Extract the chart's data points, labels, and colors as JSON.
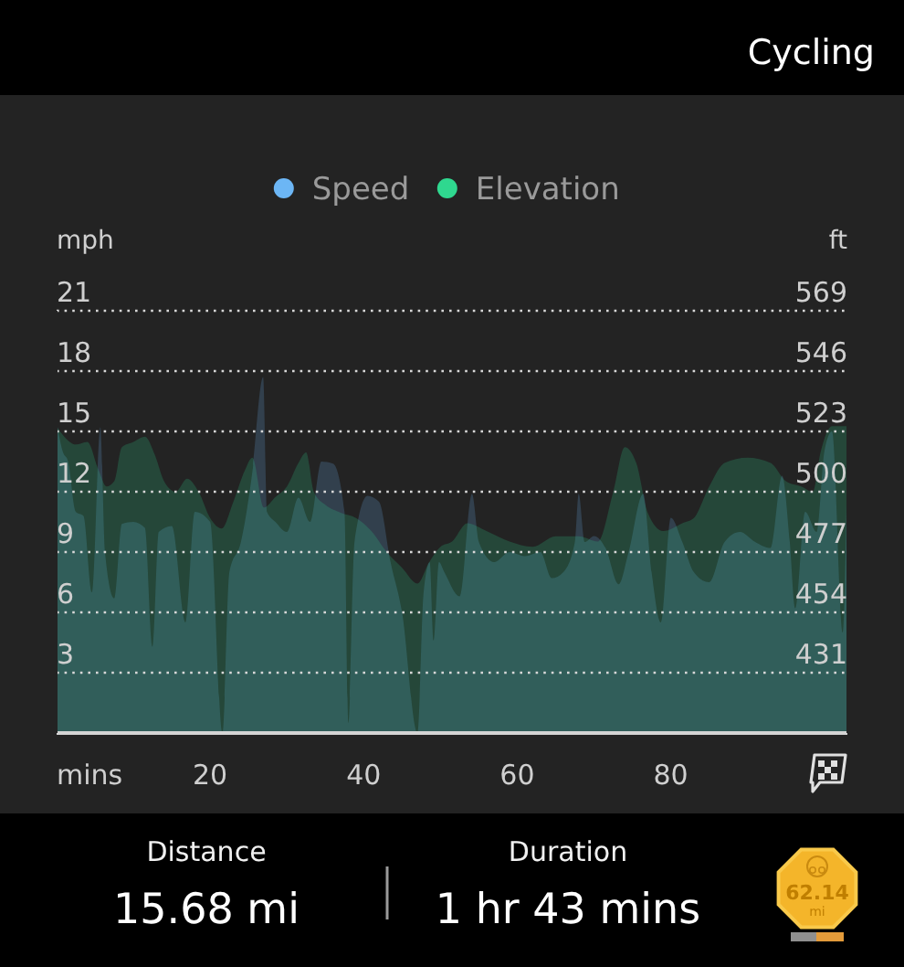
{
  "chart_data": {
    "type": "area",
    "title": "Cycling",
    "xlabel": "mins",
    "ylabel": "mph",
    "y2label": "ft",
    "xlim": [
      0,
      103
    ],
    "xticks": [
      20,
      40,
      60,
      80
    ],
    "ylim": [
      0,
      21
    ],
    "yticks": [
      3,
      6,
      9,
      12,
      15,
      18,
      21
    ],
    "y2lim": [
      408,
      569
    ],
    "y2ticks": [
      431,
      454,
      477,
      500,
      523,
      546,
      569
    ],
    "grid": "y",
    "legend": "top",
    "series": [
      {
        "name": "Speed",
        "color": "#6cb6f5",
        "x": [
          0,
          0.8,
          1.5,
          2.5,
          3.5,
          4.6,
          5.7,
          6.3,
          7.5,
          8.5,
          10,
          11.5,
          12.5,
          13.3,
          15,
          16.8,
          18,
          20,
          21.6,
          22.5,
          24,
          25.5,
          26.9,
          27.4,
          28.5,
          30,
          31.5,
          33,
          34.5,
          36,
          37.5,
          38,
          38.8,
          40.5,
          42,
          43.5,
          45,
          47,
          47.8,
          48.6,
          49.1,
          49.8,
          50.5,
          52.5,
          54.1,
          55,
          57,
          59,
          61,
          63,
          64.5,
          66,
          67.5,
          68,
          68.8,
          70,
          71.5,
          73.2,
          74.5,
          76.4,
          77.5,
          78.7,
          80,
          81.5,
          83,
          85,
          87,
          89,
          91,
          93,
          94.5,
          95.5,
          96.2,
          97.5,
          99,
          100,
          101,
          102.4,
          103
        ],
        "values": [
          15.5,
          14,
          13.5,
          11,
          10.8,
          7,
          15.2,
          9,
          6.7,
          10.4,
          10.5,
          10.2,
          4.3,
          10,
          10.3,
          5.5,
          11,
          10.5,
          0,
          8,
          9.5,
          13,
          17.7,
          11,
          10.5,
          10,
          11.7,
          10.5,
          13.5,
          13.4,
          11,
          0.5,
          9.5,
          11.8,
          11.5,
          8.5,
          6,
          0,
          7,
          8.5,
          4.6,
          8.5,
          8,
          6.8,
          11.9,
          9.5,
          8.5,
          9,
          8.8,
          9,
          7.7,
          8,
          9.5,
          11.9,
          9.5,
          9.8,
          9.2,
          7.4,
          9,
          11.9,
          8,
          5.5,
          10.7,
          9.5,
          8,
          7.5,
          9.5,
          10,
          9.5,
          9.2,
          12.8,
          9.5,
          6.2,
          11,
          10,
          14,
          15,
          5,
          14
        ]
      },
      {
        "name": "Elevation",
        "color": "#2fd88f",
        "axis": "y2",
        "x": [
          0,
          1,
          2.5,
          4,
          5.5,
          6.5,
          7.5,
          8.5,
          10,
          11.5,
          12.8,
          14,
          15.5,
          17,
          18.5,
          20,
          21.5,
          23,
          24.5,
          25.5,
          27,
          28.5,
          30,
          31.5,
          32.5,
          33.5,
          35,
          37,
          39,
          41,
          43,
          45,
          47,
          48.5,
          50,
          51.5,
          53.5,
          56,
          59,
          62,
          65,
          68,
          70.5,
          72.5,
          74,
          75.5,
          77,
          79,
          81.5,
          83,
          85,
          87,
          90,
          93,
          95,
          97,
          98.5,
          99.5,
          101,
          103
        ],
        "values": [
          525,
          521,
          518,
          519,
          508,
          502,
          504,
          517,
          519,
          521,
          514,
          504,
          500,
          505,
          500,
          490,
          486,
          496,
          508,
          513,
          494,
          498,
          502,
          511,
          515,
          500,
          495,
          492,
          490,
          485,
          477,
          471,
          465,
          473,
          479,
          481,
          488,
          485,
          481,
          479,
          483,
          483,
          481,
          500,
          517,
          511,
          492,
          485,
          488,
          490,
          502,
          511,
          513,
          511,
          504,
          502,
          500,
          515,
          525,
          525
        ]
      }
    ],
    "annotations": [
      "Distance",
      "15.68 mi",
      "Duration",
      "1 hr 43 mins",
      "62.14 mi"
    ]
  }
}
